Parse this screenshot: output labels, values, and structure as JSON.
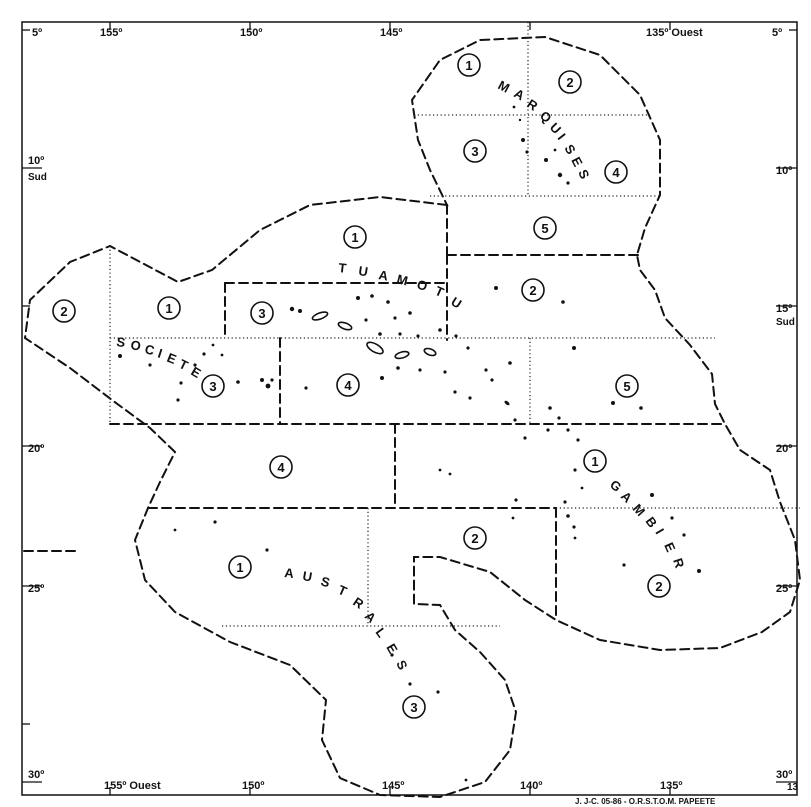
{
  "map": {
    "colors": {
      "ink": "#111111",
      "paper": "#ffffff"
    },
    "lon_top": [
      "155º",
      "150º",
      "145º",
      "135º Ouest"
    ],
    "lon_bottom": [
      "155º Ouest",
      "150º",
      "145º",
      "140º",
      "135º"
    ],
    "lat_left": {
      "lat5": "5º",
      "lat10": "10º",
      "sud10": "Sud",
      "lat20": "20º",
      "lat25": "25º",
      "lat30": "30º"
    },
    "lat_right": {
      "lat5": "5º",
      "lat10": "10º",
      "lat15": "15º",
      "sud15": "Sud",
      "lat20": "20º",
      "lat25": "25º",
      "lat30": "30º",
      "frag30": "13"
    },
    "archipelagos": {
      "marquises": {
        "letters": [
          "M",
          "A",
          "R",
          "Q",
          "U",
          "I",
          "S",
          "E",
          "S"
        ]
      },
      "tuamotu": {
        "letters": [
          "T",
          "U",
          "A",
          "M",
          "O",
          "T",
          "U"
        ]
      },
      "societe": {
        "letters": [
          "S",
          "O",
          "C",
          "I",
          "E",
          "T",
          "E"
        ]
      },
      "gambier": {
        "letters": [
          "G",
          "A",
          "M",
          "B",
          "I",
          "E",
          "R"
        ]
      },
      "australes": {
        "letters": [
          "A",
          "U",
          "S",
          "T",
          "R",
          "A",
          "L",
          "E",
          "S"
        ]
      }
    },
    "zones": {
      "marquises": [
        "1",
        "2",
        "3",
        "4",
        "5"
      ],
      "tuamotu": [
        "1",
        "2",
        "3",
        "4",
        "5"
      ],
      "societe": [
        "1",
        "2",
        "3",
        "4"
      ],
      "gambier": [
        "1",
        "2"
      ],
      "australes": [
        "1",
        "2",
        "3"
      ]
    },
    "credit": "J. J-C. 05-86 - O.R.S.T.O.M.   PAPEETE"
  }
}
